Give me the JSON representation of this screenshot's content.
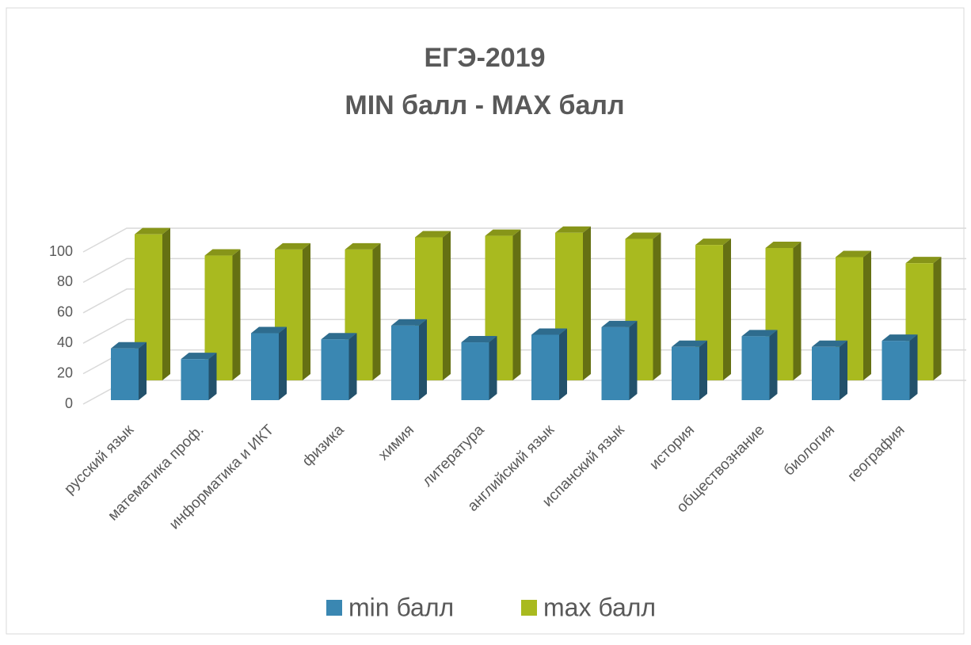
{
  "chart_data": {
    "type": "bar3d",
    "title": [
      "ЕГЭ-2019",
      "MIN балл - MAX балл"
    ],
    "categories": [
      "русский язык",
      "математика проф.",
      "информатика и ИКТ",
      "физика",
      "химия",
      "литература",
      "английский язык",
      "испанский язык",
      "история",
      "обществознание",
      "биология",
      "география"
    ],
    "series": [
      {
        "name": "min балл",
        "color": "#3a87b2",
        "values": [
          34,
          27,
          44,
          40,
          49,
          38,
          43,
          48,
          35,
          42,
          35,
          39
        ]
      },
      {
        "name": "max балл",
        "color": "#a9ba1f",
        "values": [
          96,
          82,
          86,
          86,
          94,
          95,
          97,
          93,
          89,
          87,
          81,
          77
        ]
      }
    ],
    "ylim": [
      0,
      100
    ],
    "yticks": [
      0,
      20,
      40,
      60,
      80,
      100
    ],
    "grid": true,
    "legend": "bottom"
  }
}
